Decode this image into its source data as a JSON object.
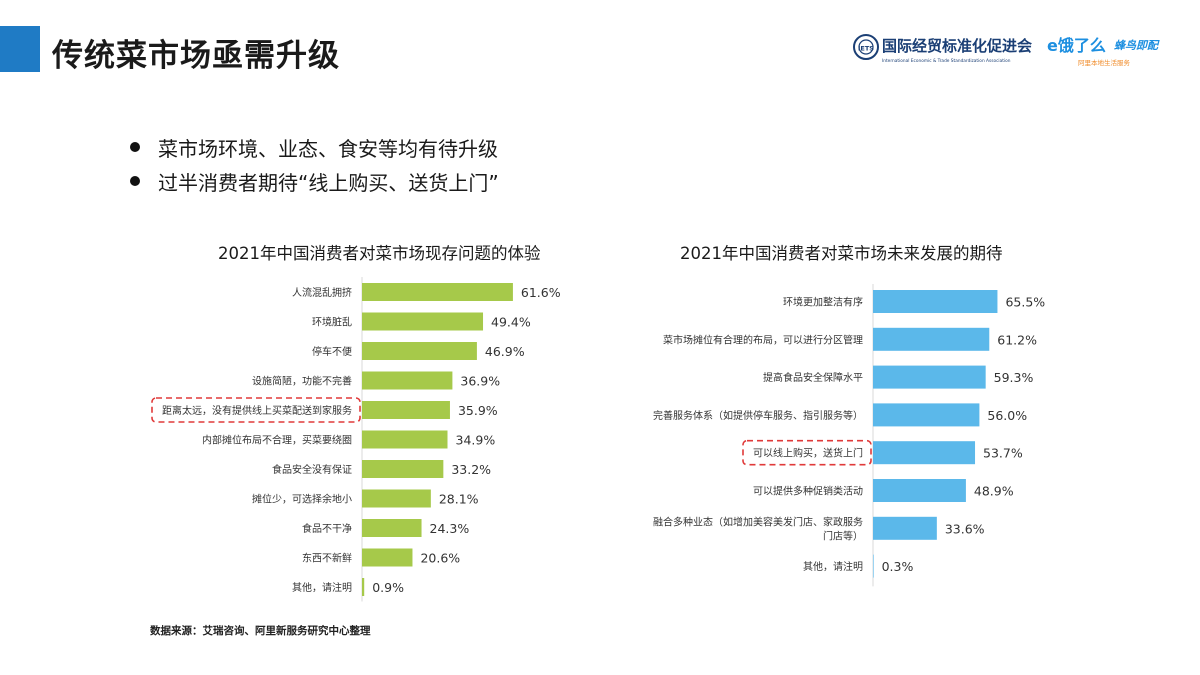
{
  "header": {
    "title": "传统菜市场亟需升级",
    "accent_color": "#1f7bc5",
    "logos": {
      "org_name_cn": "国际经贸标准化促进会",
      "org_name_en": "International Economic & Trade Standardization Association",
      "org_icon_text": "IETS",
      "eleme_text": "饿了么",
      "eleme_color": "#1d8fe0",
      "freshippo_text": "蜂鸟即配",
      "freshippo_color": "#1d8fe0",
      "tagline": "阿里本地生活服务",
      "tagline_color": "#f08c2b"
    }
  },
  "bullets": [
    "菜市场环境、业态、食安等均有待升级",
    "过半消费者期待“线上购买、送货上门”"
  ],
  "source_note": "数据来源：艾瑞咨询、阿里新服务研究中心整理",
  "chart_data": [
    {
      "type": "bar",
      "orientation": "horizontal",
      "title": "2021年中国消费者对菜市场现存问题的体验",
      "color": "#a6c94a",
      "highlight_color": "#e03a3a",
      "highlight_index": 4,
      "value_suffix": "%",
      "xlim": [
        0,
        100
      ],
      "categories": [
        "人流混乱拥挤",
        "环境脏乱",
        "停车不便",
        "设施简陋，功能不完善",
        "距离太远，没有提供线上买菜配送到家服务",
        "内部摊位布局不合理，买菜要绕圈",
        "食品安全没有保证",
        "摊位少，可选择余地小",
        "食品不干净",
        "东西不新鲜",
        "其他，请注明"
      ],
      "values": [
        61.6,
        49.4,
        46.9,
        36.9,
        35.9,
        34.9,
        33.2,
        28.1,
        24.3,
        20.6,
        0.9
      ],
      "labels": [
        "61.6%",
        "49.4%",
        "46.9%",
        "36.9%",
        "35.9%",
        "34.9%",
        "33.2%",
        "28.1%",
        "24.3%",
        "20.6%",
        "0.9%"
      ]
    },
    {
      "type": "bar",
      "orientation": "horizontal",
      "title": "2021年中国消费者对菜市场未来发展的期待",
      "color": "#5bb8ea",
      "highlight_color": "#e03a3a",
      "highlight_index": 4,
      "value_suffix": "%",
      "xlim": [
        0,
        100
      ],
      "categories": [
        "环境更加整洁有序",
        "菜市场摊位有合理的布局，可以进行分区管理",
        "提高食品安全保障水平",
        "完善服务体系（如提供停车服务、指引服务等）",
        "可以线上购买，送货上门",
        "可以提供多种促销类活动",
        "融合多种业态（如增加美容美发门店、家政服务门店等）",
        "其他，请注明"
      ],
      "values": [
        65.5,
        61.2,
        59.3,
        56.0,
        53.7,
        48.9,
        33.6,
        0.3
      ],
      "labels": [
        "65.5%",
        "61.2%",
        "59.3%",
        "56.0%",
        "53.7%",
        "48.9%",
        "33.6%",
        "0.3%"
      ]
    }
  ]
}
